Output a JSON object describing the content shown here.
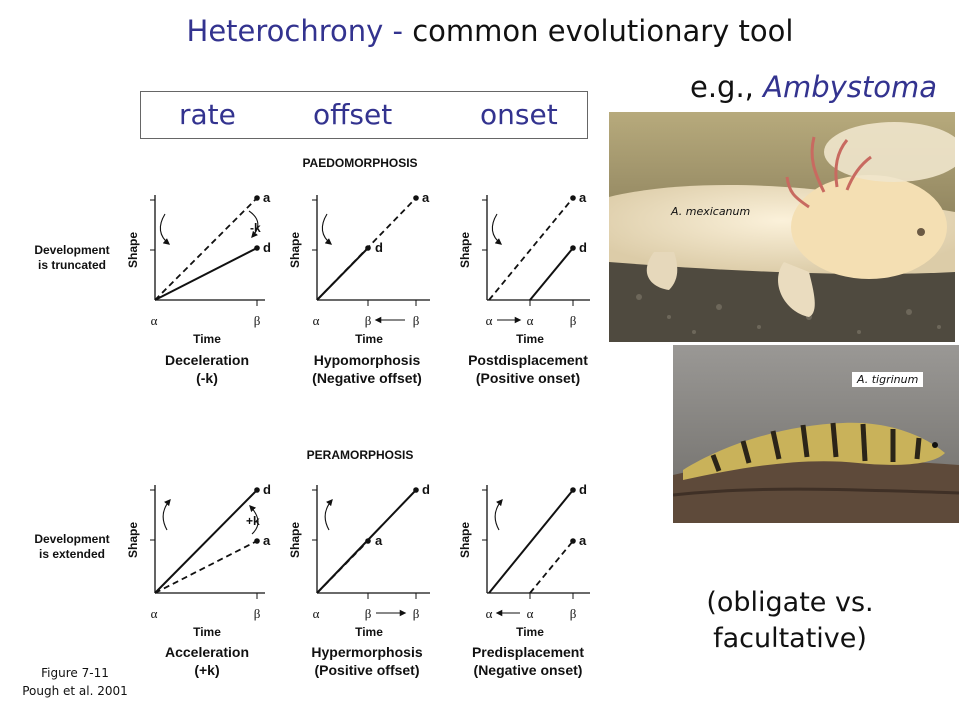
{
  "title": {
    "part1": "Heterochrony - ",
    "part2": "common evolutionary tool"
  },
  "example": {
    "prefix": "e.g., ",
    "genus": "Ambystoma"
  },
  "keywords": [
    "rate",
    "offset",
    "onset"
  ],
  "figure": {
    "paedo_title": "PAEDOMORPHOSIS",
    "pera_title": "PERAMORPHOSIS",
    "row1_label": [
      "Development",
      "is truncated"
    ],
    "row2_label": [
      "Development",
      "is extended"
    ],
    "y_axis": "Shape",
    "x_axis": "Time",
    "alpha": "α",
    "beta": "β",
    "point_a": "a",
    "point_d": "d",
    "minus_k": "-k",
    "plus_k": "+k",
    "paedo": [
      {
        "name": "Deceleration",
        "sub": "(-k)"
      },
      {
        "name": "Hypomorphosis",
        "sub": "(Negative offset)"
      },
      {
        "name": "Postdisplacement",
        "sub": "(Positive onset)"
      }
    ],
    "pera": [
      {
        "name": "Acceleration",
        "sub": "(+k)"
      },
      {
        "name": "Hypermorphosis",
        "sub": "(Positive offset)"
      },
      {
        "name": "Predisplacement",
        "sub": "(Negative onset)"
      }
    ]
  },
  "photos": {
    "top_caption": "A. mexicanum",
    "bottom_caption": "A. tigrinum"
  },
  "note": {
    "line1": "(obligate vs.",
    "line2": "facultative)"
  },
  "reference": {
    "line1": "Figure 7-11",
    "line2": "Pough et al. 2001"
  }
}
